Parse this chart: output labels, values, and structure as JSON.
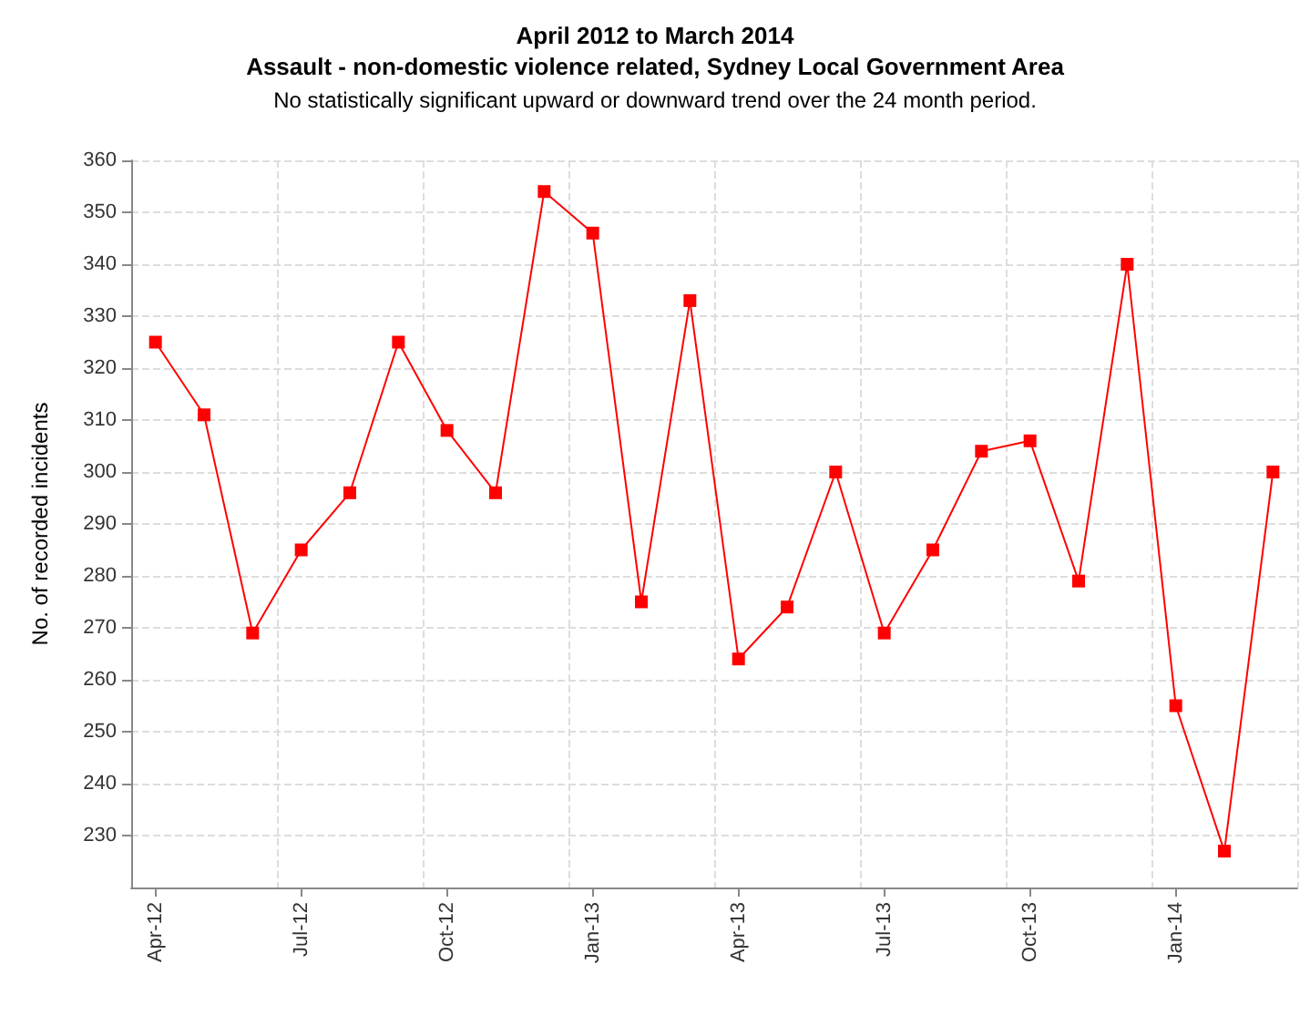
{
  "chart_data": {
    "type": "line",
    "title": "April 2012 to March 2014\nAssault - non-domestic violence related, Sydney Local Government Area",
    "subtitle": "No statistically significant upward or downward trend over the 24 month period.",
    "ylabel": "No. of recorded incidents",
    "categories": [
      "Apr-12",
      null,
      null,
      "Jul-12",
      null,
      null,
      "Oct-12",
      null,
      null,
      "Jan-13",
      null,
      null,
      "Apr-13",
      null,
      null,
      "Jul-13",
      null,
      null,
      "Oct-13",
      null,
      null,
      "Jan-14",
      null,
      null
    ],
    "series": [
      {
        "color": "#ff0000",
        "values": [
          325,
          311,
          269,
          285,
          296,
          325,
          308,
          296,
          354,
          346,
          275,
          333,
          264,
          274,
          300,
          269,
          285,
          304,
          306,
          279,
          340,
          255,
          227,
          300
        ]
      }
    ],
    "ylim": [
      220,
      360
    ],
    "yticks": [
      230,
      240,
      250,
      260,
      270,
      280,
      290,
      300,
      310,
      320,
      330,
      340,
      350,
      360
    ],
    "grid": true,
    "marker": "square",
    "line_style": "solid"
  }
}
